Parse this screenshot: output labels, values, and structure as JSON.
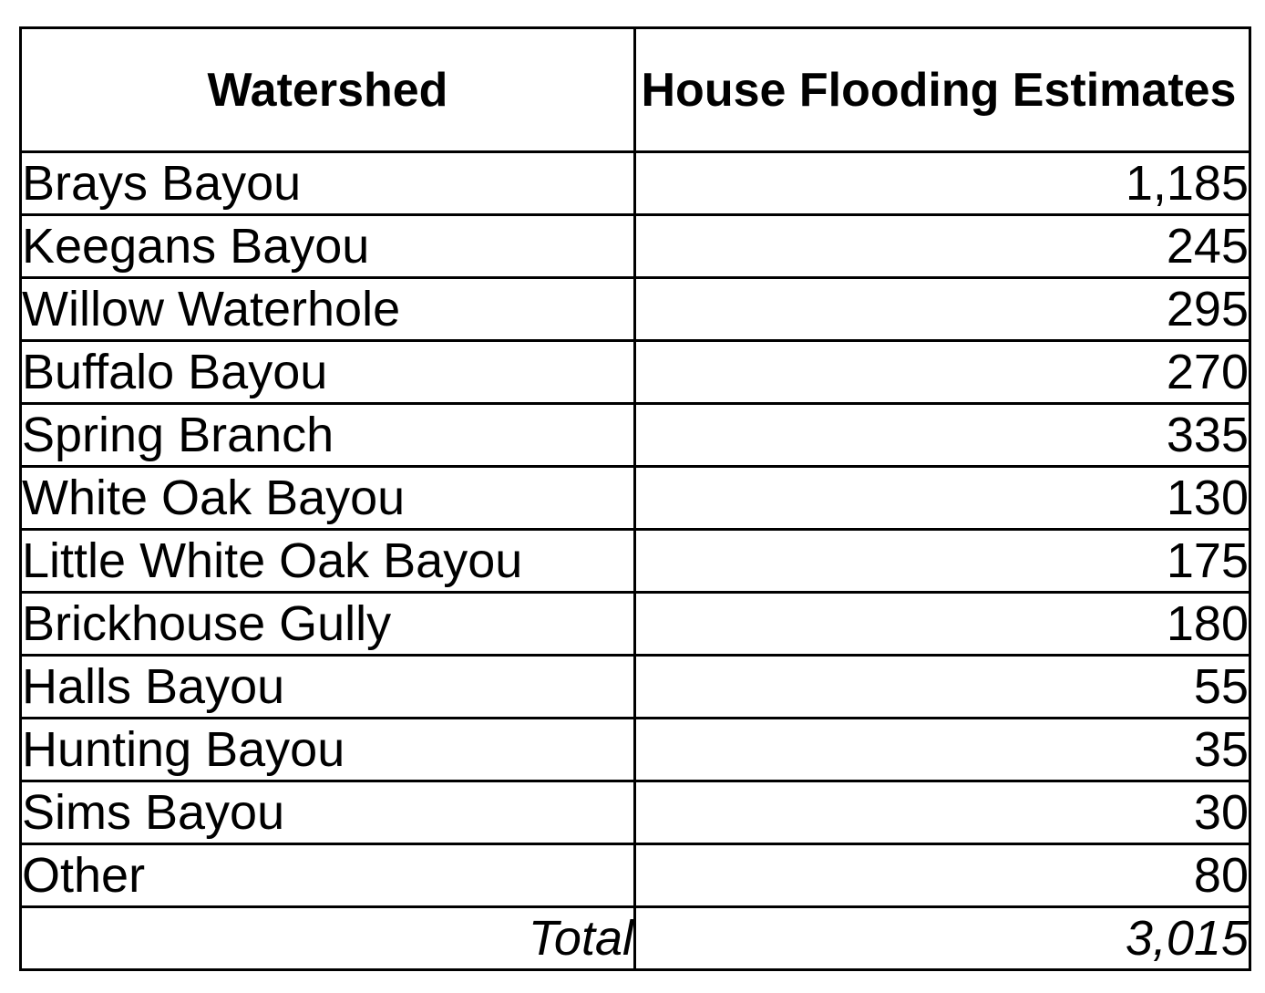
{
  "table": {
    "headers": {
      "watershed": "Watershed",
      "estimates": "House Flooding Estimates"
    },
    "rows": [
      {
        "watershed": "Brays Bayou",
        "estimate": "1,185"
      },
      {
        "watershed": "Keegans Bayou",
        "estimate": "245"
      },
      {
        "watershed": "Willow Waterhole",
        "estimate": "295"
      },
      {
        "watershed": "Buffalo Bayou",
        "estimate": "270"
      },
      {
        "watershed": "Spring Branch",
        "estimate": "335"
      },
      {
        "watershed": "White Oak Bayou",
        "estimate": "130"
      },
      {
        "watershed": "Little White Oak Bayou",
        "estimate": "175"
      },
      {
        "watershed": "Brickhouse Gully",
        "estimate": "180"
      },
      {
        "watershed": "Halls Bayou",
        "estimate": "55"
      },
      {
        "watershed": "Hunting Bayou",
        "estimate": "35"
      },
      {
        "watershed": "Sims Bayou",
        "estimate": "30"
      },
      {
        "watershed": "Other",
        "estimate": "80"
      }
    ],
    "total": {
      "label": "Total",
      "value": "3,015"
    }
  }
}
